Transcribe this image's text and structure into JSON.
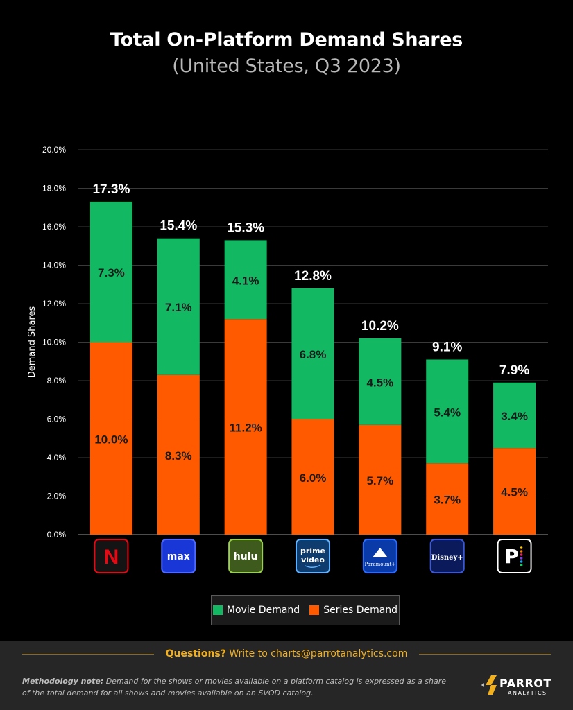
{
  "header": {
    "title": "Total On-Platform Demand Shares",
    "subtitle": "(United States, Q3 2023)"
  },
  "colors": {
    "movie": "#13b863",
    "series": "#ff5a00",
    "grid": "#3a3a3a",
    "text": "#ffffff",
    "accent": "#f2b01e"
  },
  "chart_data": {
    "type": "bar",
    "stacked": true,
    "title": "Total On-Platform Demand Shares",
    "subtitle": "(United States, Q3 2023)",
    "xlabel": "",
    "ylabel": "Demand Shares",
    "ylim": [
      0,
      20
    ],
    "yticks": [
      "0.0%",
      "2.0%",
      "4.0%",
      "6.0%",
      "8.0%",
      "10.0%",
      "12.0%",
      "14.0%",
      "16.0%",
      "18.0%",
      "20.0%"
    ],
    "grid": true,
    "categories": [
      "Netflix",
      "Max",
      "Hulu",
      "Prime Video",
      "Paramount+",
      "Disney+",
      "Peacock"
    ],
    "totals": [
      17.3,
      15.4,
      15.3,
      12.8,
      10.2,
      9.1,
      7.9
    ],
    "total_labels": [
      "17.3%",
      "15.4%",
      "15.3%",
      "12.8%",
      "10.2%",
      "9.1%",
      "7.9%"
    ],
    "series": [
      {
        "name": "Series Demand",
        "values": [
          10.0,
          8.3,
          11.2,
          6.0,
          5.7,
          3.7,
          4.5
        ],
        "labels": [
          "10.0%",
          "8.3%",
          "11.2%",
          "6.0%",
          "5.7%",
          "3.7%",
          "4.5%"
        ]
      },
      {
        "name": "Movie Demand",
        "values": [
          7.3,
          7.1,
          4.1,
          6.8,
          4.5,
          5.4,
          3.4
        ],
        "labels": [
          "7.3%",
          "7.1%",
          "4.1%",
          "6.8%",
          "4.5%",
          "5.4%",
          "3.4%"
        ]
      }
    ],
    "legend": [
      "Movie Demand",
      "Series Demand"
    ],
    "legend_position": "bottom-center"
  },
  "logos": [
    {
      "icon": "netflix-logo-icon",
      "text": "N"
    },
    {
      "icon": "max-logo-icon",
      "text": "max"
    },
    {
      "icon": "hulu-logo-icon",
      "text": "hulu"
    },
    {
      "icon": "prime-video-logo-icon",
      "line1": "prime",
      "line2": "video"
    },
    {
      "icon": "paramount-plus-logo-icon",
      "text": "Paramount+"
    },
    {
      "icon": "disney-plus-logo-icon",
      "text": "Disney+"
    },
    {
      "icon": "peacock-logo-icon",
      "text": "P"
    }
  ],
  "legend": {
    "movie_label": "Movie Demand",
    "series_label": "Series Demand"
  },
  "footer": {
    "questions_bold": "Questions?",
    "questions_text": " Write to charts@parrotanalytics.com",
    "method_bold": "Methodology note:",
    "method_text": " Demand for the shows or movies available on a platform catalog is expressed as a share of the total demand for all shows and movies available on an SVOD catalog.",
    "brand_name": "PARROT",
    "brand_sub": "ANALYTICS"
  }
}
